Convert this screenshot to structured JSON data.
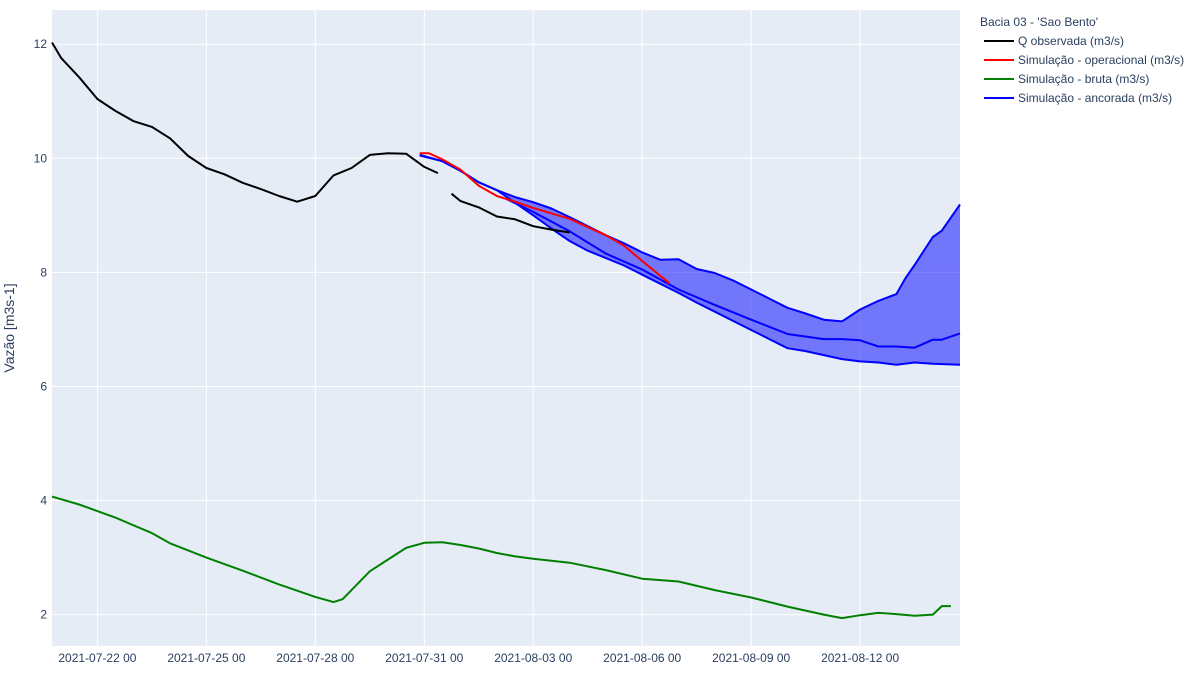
{
  "chart_data": {
    "type": "line",
    "ylabel": "Vazão [m3s-1]",
    "xlabel": "",
    "xlim": [
      "2021-07-20 18:00",
      "2021-08-14 18:00"
    ],
    "ylim": [
      1.45,
      12.6
    ],
    "grid": true,
    "legend": {
      "title": "Bacia 03 - 'Sao Bento'",
      "placement": "top-right-outside"
    },
    "x_ticks": [
      {
        "date": "2021-07-22 00:00",
        "label": "2021-07-22 00"
      },
      {
        "date": "2021-07-25 00:00",
        "label": "2021-07-25 00"
      },
      {
        "date": "2021-07-28 00:00",
        "label": "2021-07-28 00"
      },
      {
        "date": "2021-07-31 00:00",
        "label": "2021-07-31 00"
      },
      {
        "date": "2021-08-03 00:00",
        "label": "2021-08-03 00"
      },
      {
        "date": "2021-08-06 00:00",
        "label": "2021-08-06 00"
      },
      {
        "date": "2021-08-09 00:00",
        "label": "2021-08-09 00"
      },
      {
        "date": "2021-08-12 00:00",
        "label": "2021-08-12 00"
      }
    ],
    "y_ticks": [
      {
        "value": 2,
        "label": "2"
      },
      {
        "value": 4,
        "label": "4"
      },
      {
        "value": 6,
        "label": "6"
      },
      {
        "value": 8,
        "label": "8"
      },
      {
        "value": 10,
        "label": "10"
      },
      {
        "value": 12,
        "label": "12"
      }
    ],
    "series": [
      {
        "name": "Q observada (m3/s)",
        "color": "#000000",
        "segments": [
          [
            [
              "2021-07-20 18:00",
              12.03
            ],
            [
              "2021-07-21 00:00",
              11.76
            ],
            [
              "2021-07-21 12:00",
              11.42
            ],
            [
              "2021-07-22 00:00",
              11.04
            ],
            [
              "2021-07-22 12:00",
              10.83
            ],
            [
              "2021-07-23 00:00",
              10.65
            ],
            [
              "2021-07-23 12:00",
              10.55
            ],
            [
              "2021-07-24 00:00",
              10.35
            ],
            [
              "2021-07-24 12:00",
              10.04
            ],
            [
              "2021-07-25 00:00",
              9.83
            ],
            [
              "2021-07-25 12:00",
              9.72
            ],
            [
              "2021-07-26 00:00",
              9.57
            ],
            [
              "2021-07-26 12:00",
              9.46
            ],
            [
              "2021-07-27 00:00",
              9.34
            ],
            [
              "2021-07-27 12:00",
              9.24
            ],
            [
              "2021-07-28 00:00",
              9.34
            ],
            [
              "2021-07-28 12:00",
              9.7
            ],
            [
              "2021-07-29 00:00",
              9.83
            ],
            [
              "2021-07-29 12:00",
              10.06
            ],
            [
              "2021-07-30 00:00",
              10.09
            ],
            [
              "2021-07-30 12:00",
              10.08
            ],
            [
              "2021-07-31 00:00",
              9.85
            ],
            [
              "2021-07-31 09:00",
              9.74
            ]
          ],
          [
            [
              "2021-07-31 18:00",
              9.38
            ],
            [
              "2021-08-01 00:00",
              9.25
            ],
            [
              "2021-08-01 12:00",
              9.14
            ],
            [
              "2021-08-02 00:00",
              8.98
            ],
            [
              "2021-08-02 12:00",
              8.93
            ],
            [
              "2021-08-03 00:00",
              8.81
            ],
            [
              "2021-08-03 12:00",
              8.75
            ],
            [
              "2021-08-04 00:00",
              8.7
            ]
          ]
        ]
      },
      {
        "name": "Simulação - operacional (m3/s)",
        "color": "#ff0000",
        "points": [
          [
            "2021-07-30 21:00",
            10.09
          ],
          [
            "2021-07-31 03:00",
            10.09
          ],
          [
            "2021-07-31 12:00",
            9.98
          ],
          [
            "2021-08-01 00:00",
            9.8
          ],
          [
            "2021-08-01 12:00",
            9.52
          ],
          [
            "2021-08-02 00:00",
            9.34
          ],
          [
            "2021-08-02 12:00",
            9.24
          ],
          [
            "2021-08-03 00:00",
            9.13
          ],
          [
            "2021-08-04 00:00",
            8.94
          ],
          [
            "2021-08-05 00:00",
            8.65
          ],
          [
            "2021-08-05 12:00",
            8.47
          ],
          [
            "2021-08-06 00:00",
            8.2
          ],
          [
            "2021-08-06 18:00",
            7.81
          ]
        ]
      },
      {
        "name": "Simulação - bruta (m3/s)",
        "color": "#008000",
        "points": [
          [
            "2021-07-20 18:00",
            4.07
          ],
          [
            "2021-07-21 12:00",
            3.93
          ],
          [
            "2021-07-22 12:00",
            3.7
          ],
          [
            "2021-07-23 12:00",
            3.43
          ],
          [
            "2021-07-24 00:00",
            3.25
          ],
          [
            "2021-07-25 00:00",
            3.0
          ],
          [
            "2021-07-26 00:00",
            2.77
          ],
          [
            "2021-07-27 00:00",
            2.53
          ],
          [
            "2021-07-27 12:00",
            2.42
          ],
          [
            "2021-07-28 00:00",
            2.31
          ],
          [
            "2021-07-28 12:00",
            2.22
          ],
          [
            "2021-07-28 18:00",
            2.27
          ],
          [
            "2021-07-29 12:00",
            2.76
          ],
          [
            "2021-07-30 12:00",
            3.17
          ],
          [
            "2021-07-31 00:00",
            3.26
          ],
          [
            "2021-07-31 12:00",
            3.27
          ],
          [
            "2021-08-01 00:00",
            3.22
          ],
          [
            "2021-08-01 12:00",
            3.16
          ],
          [
            "2021-08-02 00:00",
            3.08
          ],
          [
            "2021-08-02 12:00",
            3.02
          ],
          [
            "2021-08-03 00:00",
            2.98
          ],
          [
            "2021-08-04 00:00",
            2.91
          ],
          [
            "2021-08-05 00:00",
            2.78
          ],
          [
            "2021-08-06 00:00",
            2.63
          ],
          [
            "2021-08-07 00:00",
            2.58
          ],
          [
            "2021-08-08 00:00",
            2.43
          ],
          [
            "2021-08-09 00:00",
            2.3
          ],
          [
            "2021-08-10 00:00",
            2.14
          ],
          [
            "2021-08-11 00:00",
            2.0
          ],
          [
            "2021-08-11 12:00",
            1.94
          ],
          [
            "2021-08-12 00:00",
            1.99
          ],
          [
            "2021-08-12 12:00",
            2.03
          ],
          [
            "2021-08-13 00:00",
            2.01
          ],
          [
            "2021-08-13 12:00",
            1.98
          ],
          [
            "2021-08-14 00:00",
            2.0
          ],
          [
            "2021-08-14 06:00",
            2.15
          ],
          [
            "2021-08-14 12:00",
            2.15
          ]
        ]
      },
      {
        "name": "Simulação - ancorada (m3/s)",
        "color": "#0000ff",
        "fill_color": "rgba(0,0,255,0.5)",
        "upper": [
          [
            "2021-07-30 21:00",
            10.06
          ],
          [
            "2021-07-31 12:00",
            9.95
          ],
          [
            "2021-08-01 00:00",
            9.78
          ],
          [
            "2021-08-01 12:00",
            9.58
          ],
          [
            "2021-08-02 00:00",
            9.44
          ],
          [
            "2021-08-02 12:00",
            9.32
          ],
          [
            "2021-08-03 00:00",
            9.23
          ],
          [
            "2021-08-03 12:00",
            9.12
          ],
          [
            "2021-08-04 00:00",
            8.97
          ],
          [
            "2021-08-04 12:00",
            8.81
          ],
          [
            "2021-08-05 00:00",
            8.65
          ],
          [
            "2021-08-05 12:00",
            8.51
          ],
          [
            "2021-08-06 00:00",
            8.35
          ],
          [
            "2021-08-06 12:00",
            8.22
          ],
          [
            "2021-08-07 00:00",
            8.23
          ],
          [
            "2021-08-07 12:00",
            8.06
          ],
          [
            "2021-08-08 00:00",
            7.99
          ],
          [
            "2021-08-08 12:00",
            7.86
          ],
          [
            "2021-08-09 00:00",
            7.7
          ],
          [
            "2021-08-09 12:00",
            7.54
          ],
          [
            "2021-08-10 00:00",
            7.38
          ],
          [
            "2021-08-10 12:00",
            7.28
          ],
          [
            "2021-08-11 00:00",
            7.17
          ],
          [
            "2021-08-11 12:00",
            7.14
          ],
          [
            "2021-08-12 00:00",
            7.35
          ],
          [
            "2021-08-12 12:00",
            7.5
          ],
          [
            "2021-08-13 00:00",
            7.62
          ],
          [
            "2021-08-13 06:00",
            7.9
          ],
          [
            "2021-08-13 12:00",
            8.13
          ],
          [
            "2021-08-14 00:00",
            8.62
          ],
          [
            "2021-08-14 06:00",
            8.73
          ],
          [
            "2021-08-14 18:00",
            9.19
          ]
        ],
        "middle": [
          [
            "2021-08-02 06:00",
            9.29
          ],
          [
            "2021-08-03 00:00",
            9.06
          ],
          [
            "2021-08-04 00:00",
            8.72
          ],
          [
            "2021-08-05 00:00",
            8.33
          ],
          [
            "2021-08-06 00:00",
            8.05
          ],
          [
            "2021-08-07 00:00",
            7.7
          ],
          [
            "2021-08-08 00:00",
            7.43
          ],
          [
            "2021-08-09 00:00",
            7.17
          ],
          [
            "2021-08-10 00:00",
            6.92
          ],
          [
            "2021-08-11 00:00",
            6.83
          ],
          [
            "2021-08-11 12:00",
            6.83
          ],
          [
            "2021-08-12 00:00",
            6.81
          ],
          [
            "2021-08-12 12:00",
            6.7
          ],
          [
            "2021-08-13 00:00",
            6.7
          ],
          [
            "2021-08-13 12:00",
            6.68
          ],
          [
            "2021-08-14 00:00",
            6.82
          ],
          [
            "2021-08-14 06:00",
            6.82
          ],
          [
            "2021-08-14 18:00",
            6.93
          ]
        ],
        "lower": [
          [
            "2021-07-30 21:00",
            10.05
          ],
          [
            "2021-07-31 12:00",
            9.95
          ],
          [
            "2021-08-01 00:00",
            9.78
          ],
          [
            "2021-08-01 12:00",
            9.58
          ],
          [
            "2021-08-02 00:00",
            9.44
          ],
          [
            "2021-08-02 12:00",
            9.22
          ],
          [
            "2021-08-03 00:00",
            9.0
          ],
          [
            "2021-08-03 12:00",
            8.77
          ],
          [
            "2021-08-04 00:00",
            8.55
          ],
          [
            "2021-08-04 12:00",
            8.38
          ],
          [
            "2021-08-05 00:00",
            8.25
          ],
          [
            "2021-08-05 12:00",
            8.12
          ],
          [
            "2021-08-06 00:00",
            7.96
          ],
          [
            "2021-08-06 12:00",
            7.8
          ],
          [
            "2021-08-07 00:00",
            7.64
          ],
          [
            "2021-08-07 12:00",
            7.47
          ],
          [
            "2021-08-08 00:00",
            7.31
          ],
          [
            "2021-08-08 12:00",
            7.15
          ],
          [
            "2021-08-09 00:00",
            6.99
          ],
          [
            "2021-08-09 12:00",
            6.83
          ],
          [
            "2021-08-10 00:00",
            6.67
          ],
          [
            "2021-08-10 12:00",
            6.62
          ],
          [
            "2021-08-11 00:00",
            6.55
          ],
          [
            "2021-08-11 12:00",
            6.48
          ],
          [
            "2021-08-12 00:00",
            6.44
          ],
          [
            "2021-08-12 12:00",
            6.42
          ],
          [
            "2021-08-13 00:00",
            6.38
          ],
          [
            "2021-08-13 12:00",
            6.42
          ],
          [
            "2021-08-14 00:00",
            6.4
          ],
          [
            "2021-08-14 18:00",
            6.38
          ]
        ]
      }
    ]
  }
}
